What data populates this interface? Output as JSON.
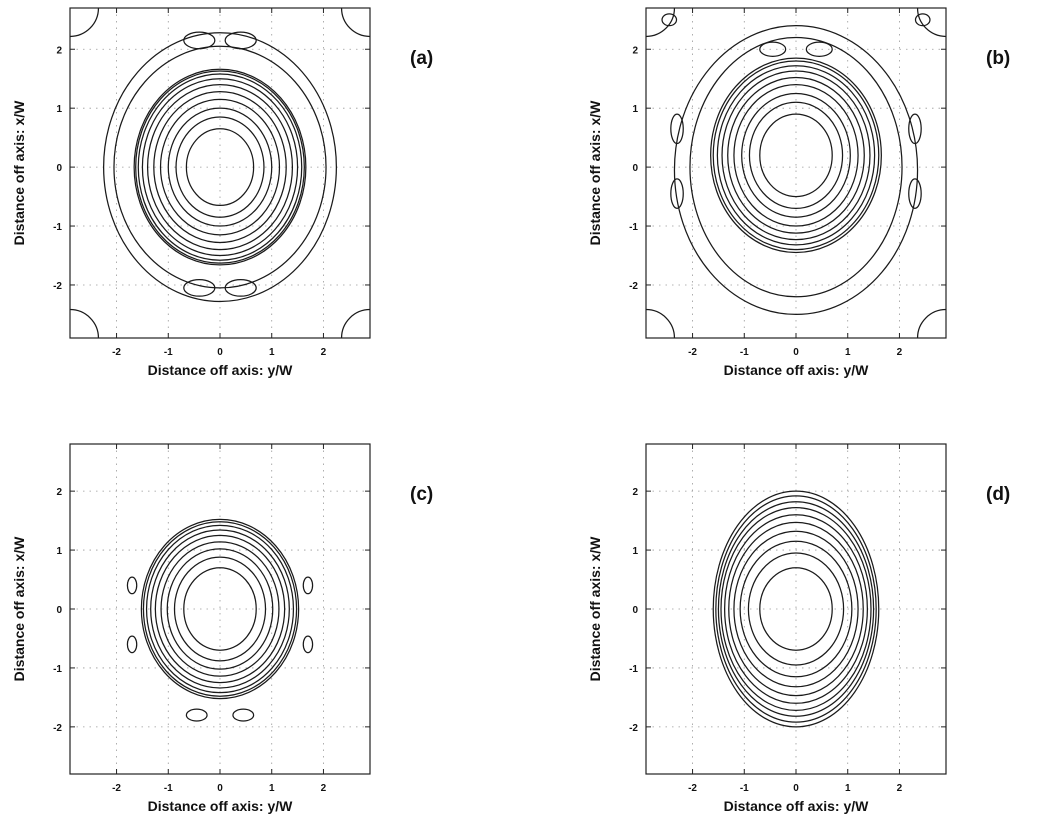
{
  "chart_data": [
    {
      "type": "contour",
      "panel_label": "(a)",
      "xlabel": "Distance off axis: y/W",
      "ylabel": "Distance off axis: x/W",
      "xlim": [
        -2.9,
        2.9
      ],
      "ylim": [
        -2.9,
        2.7
      ],
      "xticks": [
        "-2",
        "-1",
        "0",
        "1",
        "2"
      ],
      "yticks": [
        "-2",
        "-1",
        "0",
        "1",
        "2"
      ],
      "grid": true,
      "contour_radii": [
        0.65,
        0.85,
        1.0,
        1.15,
        1.28,
        1.4,
        1.5,
        1.58,
        1.63,
        1.66
      ],
      "outer_rings": [
        {
          "rx": 2.05,
          "ry": 2.05
        },
        {
          "rx": 2.25,
          "ry": 2.28
        }
      ],
      "lobes": [
        {
          "x": -0.4,
          "y": 2.15,
          "rx": 0.3,
          "ry": 0.14
        },
        {
          "x": 0.4,
          "y": 2.15,
          "rx": 0.3,
          "ry": 0.14
        },
        {
          "x": -0.4,
          "y": -2.05,
          "rx": 0.3,
          "ry": 0.14
        },
        {
          "x": 0.4,
          "y": -2.05,
          "rx": 0.3,
          "ry": 0.14
        }
      ],
      "corner_arcs": true
    },
    {
      "type": "contour",
      "panel_label": "(b)",
      "xlabel": "Distance off axis: y/W",
      "ylabel": "Distance off axis: x/W",
      "xlim": [
        -2.9,
        2.9
      ],
      "ylim": [
        -2.9,
        2.7
      ],
      "xticks": [
        "-2",
        "-1",
        "0",
        "1",
        "2"
      ],
      "yticks": [
        "-2",
        "-1",
        "0",
        "1",
        "2"
      ],
      "grid": true,
      "center": [
        0,
        0.2
      ],
      "contour_radii": [
        0.7,
        0.9,
        1.05,
        1.2,
        1.32,
        1.43,
        1.52,
        1.6,
        1.65
      ],
      "outer_rings": [
        {
          "rx": 2.05,
          "ry": 2.2,
          "cy": 0.0
        },
        {
          "rx": 2.35,
          "ry": 2.45,
          "cy": -0.05
        }
      ],
      "lobes": [
        {
          "x": -2.3,
          "y": 0.65,
          "rx": 0.12,
          "ry": 0.25
        },
        {
          "x": 2.3,
          "y": 0.65,
          "rx": 0.12,
          "ry": 0.25
        },
        {
          "x": -2.3,
          "y": -0.45,
          "rx": 0.12,
          "ry": 0.25
        },
        {
          "x": 2.3,
          "y": -0.45,
          "rx": 0.12,
          "ry": 0.25
        },
        {
          "x": -2.45,
          "y": 2.5,
          "rx": 0.14,
          "ry": 0.1
        },
        {
          "x": 2.45,
          "y": 2.5,
          "rx": 0.14,
          "ry": 0.1
        },
        {
          "x": -0.45,
          "y": 2.0,
          "rx": 0.25,
          "ry": 0.12
        },
        {
          "x": 0.45,
          "y": 2.0,
          "rx": 0.25,
          "ry": 0.12
        }
      ],
      "corner_arcs": true
    },
    {
      "type": "contour",
      "panel_label": "(c)",
      "xlabel": "Distance off axis: y/W",
      "ylabel": "Distance off axis: x/W",
      "xlim": [
        -2.9,
        2.9
      ],
      "ylim": [
        -2.8,
        2.8
      ],
      "xticks": [
        "-2",
        "-1",
        "0",
        "1",
        "2"
      ],
      "yticks": [
        "-2",
        "-1",
        "0",
        "1",
        "2"
      ],
      "grid": true,
      "contour_radii": [
        0.7,
        0.88,
        1.02,
        1.14,
        1.25,
        1.34,
        1.42,
        1.48,
        1.52
      ],
      "outer_rings": [],
      "lobes": [
        {
          "x": -1.7,
          "y": 0.4,
          "rx": 0.09,
          "ry": 0.14
        },
        {
          "x": 1.7,
          "y": 0.4,
          "rx": 0.09,
          "ry": 0.14
        },
        {
          "x": -1.7,
          "y": -0.6,
          "rx": 0.09,
          "ry": 0.14
        },
        {
          "x": 1.7,
          "y": -0.6,
          "rx": 0.09,
          "ry": 0.14
        },
        {
          "x": -0.45,
          "y": -1.8,
          "rx": 0.2,
          "ry": 0.1
        },
        {
          "x": 0.45,
          "y": -1.8,
          "rx": 0.2,
          "ry": 0.1
        }
      ],
      "corner_arcs": false
    },
    {
      "type": "contour",
      "panel_label": "(d)",
      "xlabel": "Distance off axis: y/W",
      "ylabel": "Distance off axis: x/W",
      "xlim": [
        -2.9,
        2.9
      ],
      "ylim": [
        -2.8,
        2.8
      ],
      "xticks": [
        "-2",
        "-1",
        "0",
        "1",
        "2"
      ],
      "yticks": [
        "-2",
        "-1",
        "0",
        "1",
        "2"
      ],
      "grid": true,
      "contour_ellipses": [
        {
          "rx": 0.7,
          "ry": 0.7
        },
        {
          "rx": 0.92,
          "ry": 0.95
        },
        {
          "rx": 1.08,
          "ry": 1.15
        },
        {
          "rx": 1.2,
          "ry": 1.32
        },
        {
          "rx": 1.3,
          "ry": 1.47
        },
        {
          "rx": 1.38,
          "ry": 1.6
        },
        {
          "rx": 1.45,
          "ry": 1.72
        },
        {
          "rx": 1.5,
          "ry": 1.82
        },
        {
          "rx": 1.55,
          "ry": 1.92
        },
        {
          "rx": 1.6,
          "ry": 2.0
        }
      ],
      "outer_rings": [],
      "lobes": [],
      "corner_arcs": false
    }
  ]
}
